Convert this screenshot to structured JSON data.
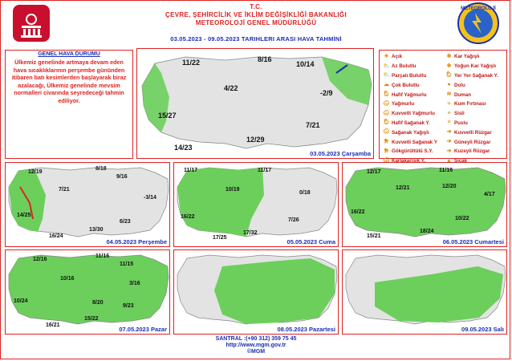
{
  "header": {
    "line1": "T.C.",
    "line2": "ÇEVRE, ŞEHİRCİLİK VE İKLİM DEĞİŞİKLİĞİ BAKANLIĞI",
    "line3": "METEOROLOJİ GENEL MÜDÜRLÜĞÜ",
    "subtitle": "03.05.2023 - 09.05.2023 TARIHLERI ARASI HAVA TAHMİNİ",
    "logo_right_text": "METEOROLOJİ"
  },
  "genel": {
    "title": "GENEL HAVA DURUMU",
    "text": "Ülkemiz genelinde artmaya devam eden hava sıcaklıklarının perşembe gününden itibaren batı kesimlerden başlayarak biraz azalacağı, Ülkemiz genelinde mevsim normalleri civarında seyredeceği tahmin ediliyor."
  },
  "legend": {
    "col1": [
      "Açık",
      "Az Bulutlu",
      "Parçalı Bulutlu",
      "Çok Bulutlu",
      "Hafif Yağmurlu",
      "Yağmurlu",
      "Kuvvetli Yağmurlu",
      "Hafif Sağanak Y.",
      "Sağanak Yağışlı",
      "Kuvvetli Sağanak Y",
      "Gökgürültülü S.Y.",
      "Karlakarışık Y.",
      "Hafif Kar Yağışlı"
    ],
    "col2": [
      "Kar Yağışlı",
      "Yoğun Kar Yağışlı",
      "Yer Yer Sağanak Y.",
      "Dolu",
      "Duman",
      "Kum Fırtınası",
      "Sisli",
      "Puslu",
      "Kuvvetli Rüzgar",
      "Güneyli Rüzgar",
      "Kuzeyli Rüzgar",
      "Sıcak",
      "Soğuk"
    ]
  },
  "days": [
    {
      "label": "03.05.2023 Çarşamba",
      "temps": [
        "11/22",
        "8/16",
        "10/14",
        "4/22",
        "-2/9",
        "15/27",
        "7/21",
        "14/23",
        "12/29"
      ]
    },
    {
      "label": "04.05.2023 Perşembe",
      "temps": [
        "12/19",
        "8/18",
        "9/16",
        "7/21",
        "-3/14",
        "14/25",
        "6/23",
        "16/24",
        "13/30"
      ]
    },
    {
      "label": "05.05.2023 Cuma",
      "temps": [
        "11/17",
        "11/17",
        "10/19",
        "0/18",
        "16/22",
        "7/26",
        "17/25",
        "17/32"
      ]
    },
    {
      "label": "06.05.2023 Cumartesi",
      "temps": [
        "12/17",
        "11/16",
        "12/21",
        "12/20",
        "4/17",
        "16/22",
        "10/22",
        "18/24",
        "15/21"
      ]
    },
    {
      "label": "07.05.2023 Pazar",
      "temps": [
        "12/16",
        "11/16",
        "10/16",
        "11/15",
        "3/16",
        "10/24",
        "8/20",
        "9/23",
        "16/21",
        "15/22"
      ]
    },
    {
      "label": "08.05.2023 Pazartesi",
      "temps": []
    },
    {
      "label": "09.05.2023 Salı",
      "temps": []
    }
  ],
  "footer": {
    "phone": "SANTRAL :(+90 312) 359 75 45",
    "web": "http://www.mgm.gov.tr",
    "copy": "©MGM"
  },
  "colors": {
    "title_red": "#e02020",
    "blue": "#1a2fb5",
    "land_grey": "#e3e3e3",
    "green": "#6ccf5c",
    "border": "#dd2222"
  }
}
